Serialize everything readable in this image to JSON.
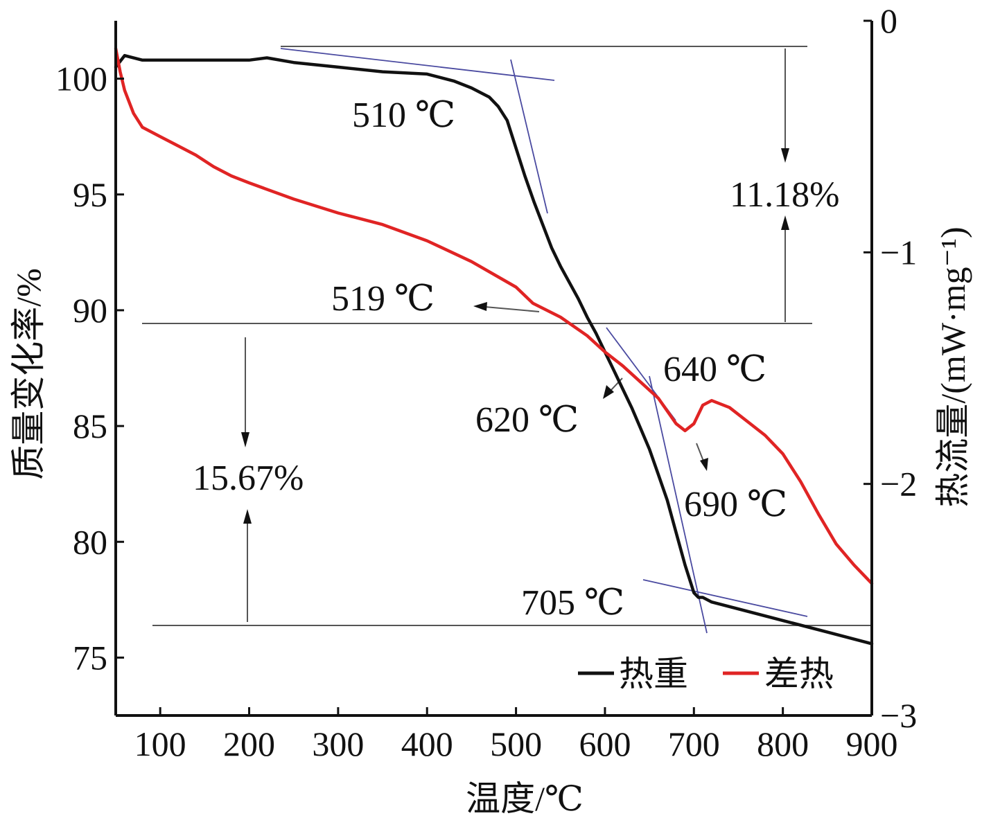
{
  "chart_data": {
    "type": "line",
    "xlabel": "温度/℃",
    "ylabel_left": "质量变化率/%",
    "ylabel_right": "热流量/(mW·mg⁻¹)",
    "xlim": [
      50,
      900
    ],
    "ylim_left": [
      72.5,
      102.5
    ],
    "ylim_right": [
      -3,
      0
    ],
    "x_ticks": [
      100,
      200,
      300,
      400,
      500,
      600,
      700,
      800,
      900
    ],
    "y_ticks_left": [
      75,
      80,
      85,
      90,
      95,
      100
    ],
    "y_ticks_right": [
      -3,
      -2,
      -1,
      0
    ],
    "grid": false,
    "legend_position": "bottom-right",
    "series": [
      {
        "name": "热重",
        "axis": "left",
        "color": "#111111",
        "x": [
          50,
          60,
          80,
          100,
          150,
          200,
          220,
          250,
          300,
          350,
          400,
          430,
          450,
          470,
          480,
          490,
          500,
          510,
          520,
          530,
          540,
          550,
          560,
          570,
          580,
          590,
          600,
          610,
          620,
          630,
          640,
          650,
          660,
          670,
          680,
          690,
          700,
          705,
          710,
          720,
          750,
          800,
          850,
          880,
          900
        ],
        "y": [
          100.5,
          101.0,
          100.8,
          100.8,
          100.8,
          100.8,
          100.9,
          100.7,
          100.5,
          100.3,
          100.2,
          99.9,
          99.6,
          99.2,
          98.8,
          98.2,
          97.0,
          95.8,
          94.7,
          93.7,
          92.7,
          91.9,
          91.2,
          90.5,
          89.7,
          89.0,
          88.2,
          87.4,
          86.6,
          85.8,
          84.9,
          84.0,
          82.9,
          81.8,
          80.4,
          79.0,
          77.8,
          77.6,
          77.6,
          77.4,
          77.1,
          76.6,
          76.1,
          75.8,
          75.6
        ]
      },
      {
        "name": "差热",
        "axis": "right",
        "color": "#e02424",
        "x": [
          50,
          55,
          60,
          70,
          80,
          100,
          120,
          140,
          160,
          180,
          200,
          250,
          300,
          350,
          400,
          450,
          500,
          519,
          550,
          580,
          600,
          620,
          640,
          660,
          680,
          690,
          700,
          710,
          720,
          740,
          760,
          780,
          800,
          820,
          840,
          860,
          880,
          900
        ],
        "y": [
          -0.12,
          -0.22,
          -0.3,
          -0.4,
          -0.46,
          -0.5,
          -0.54,
          -0.58,
          -0.63,
          -0.67,
          -0.7,
          -0.77,
          -0.83,
          -0.88,
          -0.95,
          -1.04,
          -1.15,
          -1.22,
          -1.28,
          -1.36,
          -1.43,
          -1.49,
          -1.56,
          -1.63,
          -1.74,
          -1.77,
          -1.74,
          -1.66,
          -1.64,
          -1.67,
          -1.73,
          -1.79,
          -1.87,
          -1.99,
          -2.13,
          -2.26,
          -2.35,
          -2.43
        ]
      }
    ],
    "annotations": [
      {
        "text": "510 ℃"
      },
      {
        "text": "519 ℃"
      },
      {
        "text": "640 ℃"
      },
      {
        "text": "620 ℃"
      },
      {
        "text": "690 ℃"
      },
      {
        "text": "705 ℃"
      },
      {
        "text": "11.18%"
      },
      {
        "text": "15.67%"
      }
    ]
  }
}
